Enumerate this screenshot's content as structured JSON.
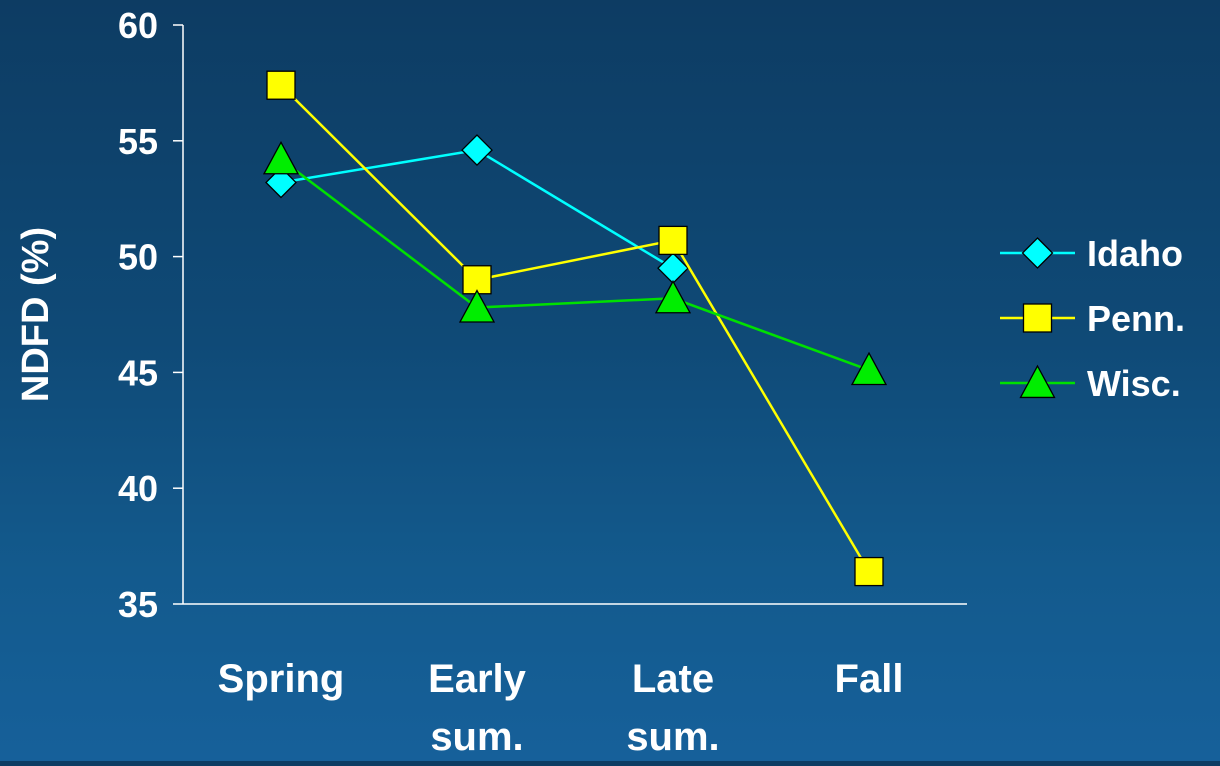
{
  "chart_data": {
    "type": "line",
    "title": "",
    "xlabel": "",
    "ylabel": "NDFD (%)",
    "categories": [
      [
        "Spring"
      ],
      [
        "Early",
        "sum."
      ],
      [
        "Late",
        "sum."
      ],
      [
        "Fall"
      ]
    ],
    "ylim": [
      35,
      60
    ],
    "yticks": [
      "35",
      "40",
      "45",
      "50",
      "55",
      "60"
    ],
    "grid": false,
    "legend_position": "right",
    "series": [
      {
        "name": "Idaho",
        "marker": "diamond",
        "line_color": "#00ffff",
        "marker_fill": "#00ffff",
        "values": [
          53.2,
          54.6,
          49.5,
          null
        ]
      },
      {
        "name": "Penn.",
        "marker": "square",
        "line_color": "#ffff00",
        "marker_fill": "#ffff00",
        "values": [
          57.4,
          49.0,
          50.7,
          36.4
        ]
      },
      {
        "name": "Wisc.",
        "marker": "triangle",
        "line_color": "#00e000",
        "marker_fill": "#00ee00",
        "values": [
          54.2,
          47.8,
          48.2,
          45.1
        ]
      }
    ]
  }
}
